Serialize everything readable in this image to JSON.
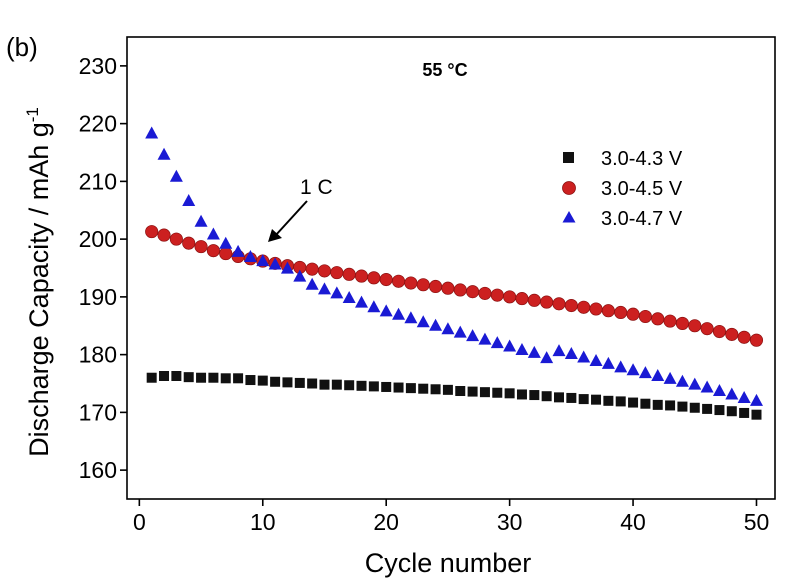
{
  "chart_data": {
    "type": "scatter",
    "panel_label": "(b)",
    "condition_label": "55 °C",
    "xlabel": "Cycle number",
    "ylabel_main": "Discharge Capacity / mAh g",
    "ylabel_superscript": "-1",
    "xlim": [
      -1,
      51.5
    ],
    "ylim": [
      155,
      235
    ],
    "xticks": [
      0,
      10,
      20,
      30,
      40,
      50
    ],
    "yticks": [
      160,
      170,
      180,
      190,
      200,
      210,
      220,
      230
    ],
    "grid": false,
    "legend_position": "right",
    "annotation": {
      "text": "1 C",
      "x": 10,
      "y": 196
    },
    "series": [
      {
        "name": "3.0-4.3 V",
        "marker": "square",
        "color": "#111111",
        "x": [
          1,
          2,
          3,
          4,
          5,
          6,
          7,
          8,
          9,
          10,
          11,
          12,
          13,
          14,
          15,
          16,
          17,
          18,
          19,
          20,
          21,
          22,
          23,
          24,
          25,
          26,
          27,
          28,
          29,
          30,
          31,
          32,
          33,
          34,
          35,
          36,
          37,
          38,
          39,
          40,
          41,
          42,
          43,
          44,
          45,
          46,
          47,
          48,
          49,
          50
        ],
        "y": [
          176.0,
          176.3,
          176.3,
          176.1,
          176.0,
          176.0,
          175.9,
          175.9,
          175.6,
          175.5,
          175.3,
          175.2,
          175.1,
          175.0,
          174.8,
          174.8,
          174.7,
          174.6,
          174.5,
          174.4,
          174.3,
          174.2,
          174.1,
          174.0,
          173.9,
          173.7,
          173.6,
          173.5,
          173.4,
          173.3,
          173.1,
          173.0,
          172.8,
          172.6,
          172.5,
          172.3,
          172.2,
          172.0,
          171.9,
          171.7,
          171.5,
          171.3,
          171.2,
          171.0,
          170.8,
          170.6,
          170.4,
          170.2,
          169.9,
          169.6
        ]
      },
      {
        "name": "3.0-4.5 V",
        "marker": "circle",
        "color": "#cc2020",
        "x": [
          1,
          2,
          3,
          4,
          5,
          6,
          7,
          8,
          9,
          10,
          11,
          12,
          13,
          14,
          15,
          16,
          17,
          18,
          19,
          20,
          21,
          22,
          23,
          24,
          25,
          26,
          27,
          28,
          29,
          30,
          31,
          32,
          33,
          34,
          35,
          36,
          37,
          38,
          39,
          40,
          41,
          42,
          43,
          44,
          45,
          46,
          47,
          48,
          49,
          50
        ],
        "y": [
          201.3,
          200.7,
          200.0,
          199.3,
          198.7,
          198.0,
          197.5,
          197.0,
          196.6,
          196.2,
          195.8,
          195.4,
          195.1,
          194.8,
          194.5,
          194.2,
          193.9,
          193.6,
          193.3,
          193.0,
          192.7,
          192.4,
          192.1,
          191.8,
          191.5,
          191.2,
          190.9,
          190.6,
          190.3,
          190.0,
          189.7,
          189.4,
          189.1,
          188.8,
          188.5,
          188.2,
          187.9,
          187.6,
          187.3,
          187.0,
          186.6,
          186.2,
          185.8,
          185.4,
          185.0,
          184.5,
          184.0,
          183.5,
          183.0,
          182.5
        ]
      },
      {
        "name": "3.0-4.7 V",
        "marker": "triangle",
        "color": "#1a1ad4",
        "x": [
          1,
          2,
          3,
          4,
          5,
          6,
          7,
          8,
          9,
          10,
          11,
          12,
          13,
          14,
          15,
          16,
          17,
          18,
          19,
          20,
          21,
          22,
          23,
          24,
          25,
          26,
          27,
          28,
          29,
          30,
          31,
          32,
          33,
          34,
          35,
          36,
          37,
          38,
          39,
          40,
          41,
          42,
          43,
          44,
          45,
          46,
          47,
          48,
          49,
          50
        ],
        "y": [
          218.3,
          214.6,
          210.8,
          206.6,
          203.0,
          200.8,
          199.2,
          197.8,
          196.9,
          196.2,
          195.6,
          194.9,
          193.5,
          192.1,
          191.3,
          190.6,
          189.8,
          189.0,
          188.2,
          187.5,
          186.9,
          186.3,
          185.6,
          185.0,
          184.4,
          183.8,
          183.2,
          182.6,
          182.0,
          181.4,
          180.8,
          180.3,
          179.4,
          180.6,
          180.1,
          179.5,
          178.9,
          178.4,
          177.8,
          177.3,
          176.8,
          176.3,
          175.8,
          175.3,
          174.8,
          174.3,
          173.7,
          173.1,
          172.5,
          172.0
        ]
      }
    ]
  }
}
